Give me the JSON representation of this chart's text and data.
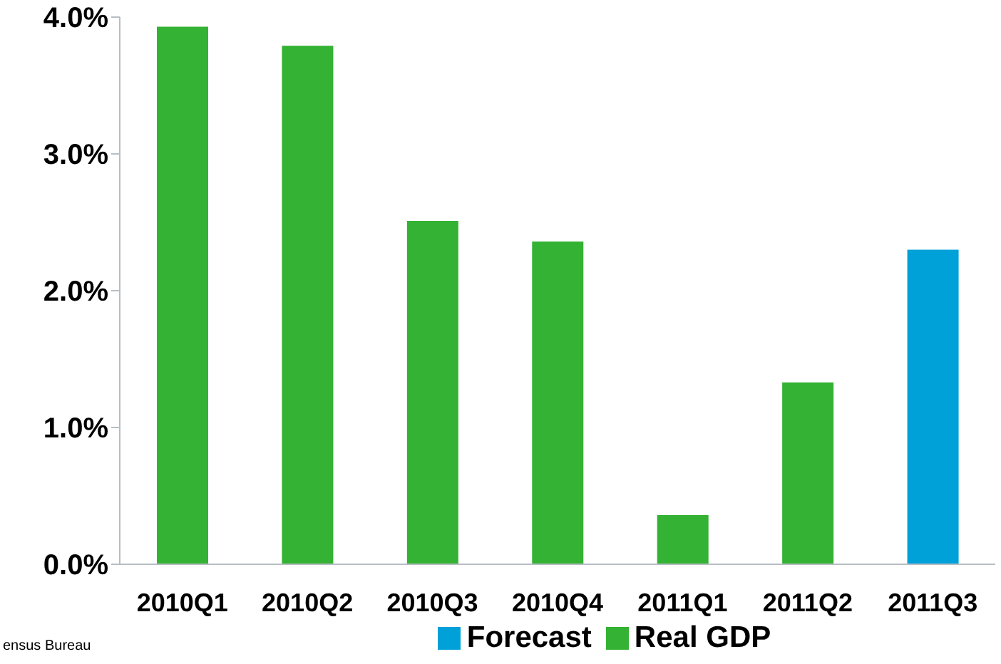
{
  "chart_data": {
    "type": "bar",
    "categories": [
      "2010Q1",
      "2010Q2",
      "2010Q3",
      "2010Q4",
      "2011Q1",
      "2011Q2",
      "2011Q3"
    ],
    "series": [
      {
        "name": "Real GDP",
        "color": "#34b233",
        "values": [
          3.93,
          3.79,
          2.51,
          2.36,
          0.36,
          1.33,
          null
        ]
      },
      {
        "name": "Forecast",
        "color": "#00a0d8",
        "values": [
          null,
          null,
          null,
          null,
          null,
          null,
          2.3
        ]
      }
    ],
    "stacked": true,
    "ylim": [
      0,
      4
    ],
    "yticks": [
      {
        "value": 0,
        "label": "0.0%"
      },
      {
        "value": 1,
        "label": "1.0%"
      },
      {
        "value": 2,
        "label": "2.0%"
      },
      {
        "value": 3,
        "label": "3.0%"
      },
      {
        "value": 4,
        "label": "4.0%"
      }
    ],
    "grid": false,
    "legend": "bottom",
    "annotations": [
      "ensus Bureau"
    ]
  }
}
